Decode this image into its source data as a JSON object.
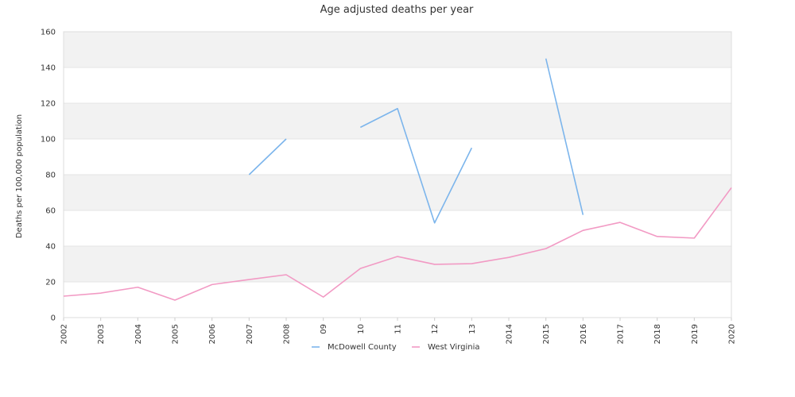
{
  "chart_data": {
    "type": "line",
    "title": "Age adjusted deaths per year",
    "xlabel": "",
    "ylabel": "Deaths per 100,000 population",
    "ylim": [
      0,
      160
    ],
    "yticks": [
      0,
      20,
      40,
      60,
      80,
      100,
      120,
      140,
      160
    ],
    "categories": [
      "2002",
      "2003",
      "2004",
      "2005",
      "2006",
      "2007",
      "2008",
      "09",
      "10",
      "11",
      "12",
      "13",
      "2014",
      "2015",
      "2016",
      "2017",
      "2018",
      "2019",
      "2020"
    ],
    "grid": "horizontal bands",
    "legend_position": "bottom",
    "series": [
      {
        "name": "McDowell County",
        "color": "#7cb5ec",
        "values": [
          null,
          null,
          null,
          null,
          null,
          80,
          100,
          null,
          106.5,
          117,
          53,
          95,
          null,
          145,
          57.5,
          null,
          null,
          null,
          null
        ]
      },
      {
        "name": "West Virginia",
        "color": "#f29ac4",
        "values": [
          12,
          13.7,
          17,
          9.8,
          18.5,
          21.3,
          24,
          11.5,
          27.5,
          34.2,
          29.8,
          30.2,
          33.7,
          38.6,
          48.8,
          53.3,
          45.4,
          44.5,
          72.7
        ]
      }
    ]
  }
}
